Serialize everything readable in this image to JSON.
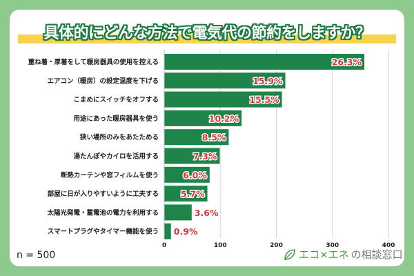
{
  "title": "具体的にどんな方法で電気代の節約をしますか？",
  "sample_size": "n = 500",
  "logo": {
    "text_green": "エコ×エネ",
    "text_gray": "の相談窓口",
    "icon": "leaf-icon"
  },
  "colors": {
    "background": "#8ec98e",
    "bar": "#1e8449",
    "label_red": "#d9343a",
    "highlight": "#f7d44c"
  },
  "chart_data": {
    "type": "bar",
    "orientation": "horizontal",
    "categories": [
      "重ね着・厚着をして暖房器具の使用を控える",
      "エアコン（暖房）の設定温度を下げる",
      "こまめにスイッチをオフする",
      "用途にあった暖房器具を使う",
      "狭い場所のみをあたためる",
      "湯たんぽやカイロを活用する",
      "断熱カーテンや窓フィルムを使う",
      "部屋に日が入りやすいように工夫する",
      "太陽光発電・蓄電池の電力を利用する",
      "スマートプラグやタイマー機能を使う"
    ],
    "values": [
      357,
      216,
      210,
      138,
      115,
      99,
      81,
      77,
      49,
      12
    ],
    "data_labels": [
      "26.3%",
      "15.9%",
      "15.5%",
      "10.2%",
      "8.5%",
      "7.3%",
      "6.0%",
      "5.7%",
      "3.6%",
      "0.9%"
    ],
    "xlim": [
      0,
      400
    ],
    "xticks": [
      "0",
      "100",
      "200",
      "300",
      "400"
    ],
    "grid": true
  }
}
